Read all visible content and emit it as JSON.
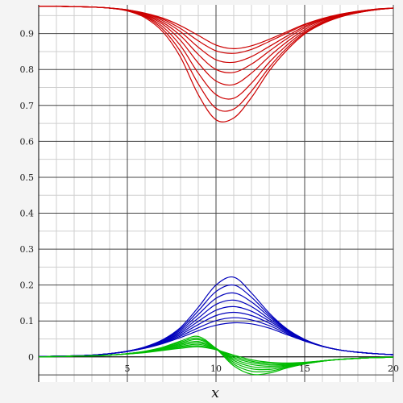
{
  "chart_data": {
    "type": "line",
    "title": "",
    "xlabel": "x",
    "ylabel": "",
    "xlim": [
      0,
      20
    ],
    "ylim": [
      -0.07,
      0.98
    ],
    "grid": true,
    "legend": "none",
    "x_ticks": [
      5,
      10,
      15,
      20
    ],
    "y_ticks": [
      0,
      0.1,
      0.2,
      0.3,
      0.4,
      0.5,
      0.6,
      0.7,
      0.8,
      0.9
    ],
    "x": [
      0,
      1,
      2,
      3,
      4,
      5,
      6,
      7,
      8,
      9,
      10,
      11,
      12,
      13,
      14,
      15,
      16,
      17,
      18,
      19,
      20
    ],
    "series": [
      {
        "color": "#cc0000",
        "values": [
          0.976,
          0.976,
          0.975,
          0.974,
          0.971,
          0.966,
          0.957,
          0.943,
          0.922,
          0.895,
          0.868,
          0.858,
          0.866,
          0.884,
          0.905,
          0.926,
          0.942,
          0.954,
          0.962,
          0.968,
          0.971
        ]
      },
      {
        "color": "#cc0000",
        "values": [
          0.976,
          0.976,
          0.975,
          0.974,
          0.971,
          0.966,
          0.956,
          0.94,
          0.914,
          0.88,
          0.852,
          0.845,
          0.856,
          0.878,
          0.901,
          0.924,
          0.941,
          0.953,
          0.962,
          0.968,
          0.971
        ]
      },
      {
        "color": "#cc0000",
        "values": [
          0.976,
          0.976,
          0.975,
          0.974,
          0.971,
          0.966,
          0.955,
          0.936,
          0.905,
          0.862,
          0.827,
          0.82,
          0.836,
          0.864,
          0.893,
          0.92,
          0.939,
          0.952,
          0.961,
          0.967,
          0.971
        ]
      },
      {
        "color": "#cc0000",
        "values": [
          0.976,
          0.976,
          0.975,
          0.974,
          0.971,
          0.965,
          0.953,
          0.931,
          0.894,
          0.842,
          0.8,
          0.792,
          0.815,
          0.851,
          0.886,
          0.916,
          0.937,
          0.951,
          0.96,
          0.967,
          0.971
        ]
      },
      {
        "color": "#cc0000",
        "values": [
          0.976,
          0.976,
          0.975,
          0.974,
          0.971,
          0.965,
          0.951,
          0.926,
          0.881,
          0.818,
          0.768,
          0.758,
          0.79,
          0.836,
          0.877,
          0.911,
          0.934,
          0.95,
          0.96,
          0.967,
          0.971
        ]
      },
      {
        "color": "#cc0000",
        "values": [
          0.976,
          0.976,
          0.975,
          0.974,
          0.971,
          0.964,
          0.949,
          0.919,
          0.866,
          0.79,
          0.73,
          0.72,
          0.762,
          0.82,
          0.868,
          0.906,
          0.931,
          0.948,
          0.959,
          0.966,
          0.971
        ]
      },
      {
        "color": "#cc0000",
        "values": [
          0.976,
          0.976,
          0.975,
          0.974,
          0.971,
          0.964,
          0.947,
          0.912,
          0.85,
          0.76,
          0.692,
          0.69,
          0.74,
          0.806,
          0.86,
          0.902,
          0.929,
          0.947,
          0.958,
          0.966,
          0.971
        ]
      },
      {
        "color": "#cc0000",
        "values": [
          0.976,
          0.976,
          0.975,
          0.974,
          0.971,
          0.963,
          0.944,
          0.905,
          0.834,
          0.73,
          0.66,
          0.665,
          0.722,
          0.796,
          0.854,
          0.899,
          0.927,
          0.946,
          0.958,
          0.966,
          0.971
        ]
      },
      {
        "color": "#0000bb",
        "values": [
          0.001,
          0.002,
          0.003,
          0.005,
          0.009,
          0.015,
          0.024,
          0.037,
          0.054,
          0.073,
          0.088,
          0.095,
          0.092,
          0.08,
          0.062,
          0.044,
          0.029,
          0.019,
          0.013,
          0.009,
          0.006
        ]
      },
      {
        "color": "#0000bb",
        "values": [
          0.001,
          0.002,
          0.003,
          0.005,
          0.009,
          0.015,
          0.025,
          0.039,
          0.058,
          0.081,
          0.101,
          0.109,
          0.103,
          0.087,
          0.065,
          0.045,
          0.03,
          0.019,
          0.013,
          0.009,
          0.006
        ]
      },
      {
        "color": "#0000bb",
        "values": [
          0.001,
          0.002,
          0.003,
          0.005,
          0.009,
          0.015,
          0.025,
          0.04,
          0.062,
          0.09,
          0.115,
          0.124,
          0.115,
          0.094,
          0.068,
          0.046,
          0.03,
          0.019,
          0.013,
          0.009,
          0.006
        ]
      },
      {
        "color": "#0000bb",
        "values": [
          0.001,
          0.002,
          0.003,
          0.005,
          0.009,
          0.015,
          0.026,
          0.042,
          0.066,
          0.099,
          0.13,
          0.14,
          0.127,
          0.1,
          0.071,
          0.047,
          0.03,
          0.019,
          0.013,
          0.009,
          0.006
        ]
      },
      {
        "color": "#0000bb",
        "values": [
          0.001,
          0.002,
          0.003,
          0.005,
          0.009,
          0.016,
          0.026,
          0.043,
          0.07,
          0.108,
          0.146,
          0.158,
          0.14,
          0.106,
          0.073,
          0.047,
          0.03,
          0.019,
          0.013,
          0.009,
          0.006
        ]
      },
      {
        "color": "#0000bb",
        "values": [
          0.001,
          0.002,
          0.003,
          0.005,
          0.009,
          0.016,
          0.027,
          0.045,
          0.074,
          0.118,
          0.163,
          0.178,
          0.153,
          0.112,
          0.075,
          0.048,
          0.03,
          0.019,
          0.013,
          0.009,
          0.006
        ]
      },
      {
        "color": "#0000bb",
        "values": [
          0.001,
          0.002,
          0.003,
          0.005,
          0.009,
          0.016,
          0.027,
          0.046,
          0.078,
          0.128,
          0.182,
          0.2,
          0.166,
          0.117,
          0.077,
          0.048,
          0.03,
          0.019,
          0.013,
          0.009,
          0.006
        ]
      },
      {
        "color": "#0000bb",
        "values": [
          0.001,
          0.002,
          0.003,
          0.005,
          0.009,
          0.016,
          0.028,
          0.048,
          0.082,
          0.138,
          0.2,
          0.222,
          0.178,
          0.122,
          0.078,
          0.049,
          0.03,
          0.019,
          0.013,
          0.009,
          0.006
        ]
      },
      {
        "color": "#00bb00",
        "values": [
          0.0,
          0.001,
          0.002,
          0.003,
          0.005,
          0.008,
          0.012,
          0.018,
          0.024,
          0.028,
          0.02,
          0.005,
          -0.008,
          -0.015,
          -0.017,
          -0.015,
          -0.011,
          -0.007,
          -0.004,
          -0.002,
          -0.001
        ]
      },
      {
        "color": "#00bb00",
        "values": [
          0.0,
          0.001,
          0.002,
          0.003,
          0.005,
          0.008,
          0.013,
          0.019,
          0.027,
          0.031,
          0.021,
          0.002,
          -0.012,
          -0.018,
          -0.019,
          -0.016,
          -0.011,
          -0.007,
          -0.004,
          -0.002,
          -0.001
        ]
      },
      {
        "color": "#00bb00",
        "values": [
          0.0,
          0.001,
          0.002,
          0.003,
          0.005,
          0.008,
          0.013,
          0.02,
          0.029,
          0.035,
          0.022,
          -0.002,
          -0.016,
          -0.022,
          -0.021,
          -0.017,
          -0.011,
          -0.007,
          -0.004,
          -0.002,
          -0.001
        ]
      },
      {
        "color": "#00bb00",
        "values": [
          0.0,
          0.001,
          0.002,
          0.003,
          0.005,
          0.009,
          0.014,
          0.022,
          0.032,
          0.039,
          0.023,
          -0.006,
          -0.021,
          -0.026,
          -0.023,
          -0.017,
          -0.011,
          -0.007,
          -0.004,
          -0.002,
          -0.001
        ]
      },
      {
        "color": "#00bb00",
        "values": [
          0.0,
          0.001,
          0.002,
          0.003,
          0.005,
          0.009,
          0.014,
          0.023,
          0.035,
          0.043,
          0.024,
          -0.01,
          -0.027,
          -0.03,
          -0.025,
          -0.018,
          -0.011,
          -0.007,
          -0.004,
          -0.002,
          -0.001
        ]
      },
      {
        "color": "#00bb00",
        "values": [
          0.0,
          0.001,
          0.002,
          0.003,
          0.005,
          0.009,
          0.015,
          0.024,
          0.038,
          0.048,
          0.024,
          -0.015,
          -0.033,
          -0.035,
          -0.027,
          -0.019,
          -0.012,
          -0.007,
          -0.004,
          -0.002,
          -0.001
        ]
      },
      {
        "color": "#00bb00",
        "values": [
          0.0,
          0.001,
          0.002,
          0.003,
          0.005,
          0.009,
          0.015,
          0.026,
          0.041,
          0.052,
          0.024,
          -0.02,
          -0.04,
          -0.04,
          -0.029,
          -0.019,
          -0.012,
          -0.007,
          -0.004,
          -0.002,
          -0.001
        ]
      },
      {
        "color": "#00bb00",
        "values": [
          0.0,
          0.001,
          0.002,
          0.003,
          0.005,
          0.009,
          0.016,
          0.027,
          0.044,
          0.057,
          0.023,
          -0.025,
          -0.048,
          -0.045,
          -0.031,
          -0.02,
          -0.012,
          -0.007,
          -0.004,
          -0.002,
          -0.001
        ]
      }
    ]
  }
}
